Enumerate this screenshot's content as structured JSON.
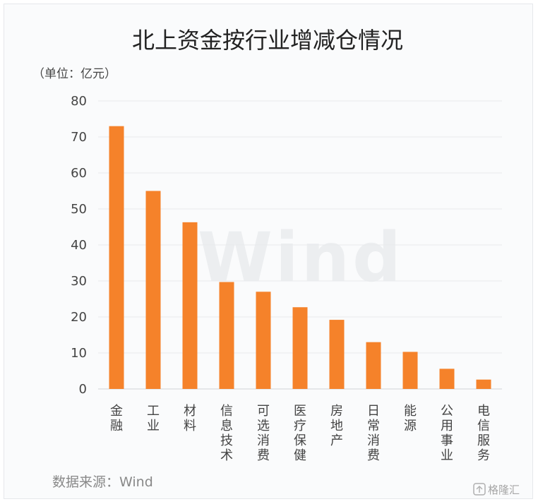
{
  "chart_data": {
    "type": "bar",
    "title": "北上资金按行业增减仓情况",
    "unit_label": "（单位：亿元）",
    "categories": [
      "金融",
      "工业",
      "材料",
      "信息技术",
      "可选消费",
      "医疗保健",
      "房地产",
      "日常消费",
      "能源",
      "公用事业",
      "电信服务"
    ],
    "values": [
      73,
      55,
      46.3,
      29.7,
      27,
      22.7,
      19.2,
      13,
      10.3,
      5.6,
      2.6
    ],
    "ylim": [
      0,
      80
    ],
    "yticks": [
      0,
      10,
      20,
      30,
      40,
      50,
      60,
      70,
      80
    ],
    "bar_color": "#f5822a",
    "grid": true,
    "legend": "none"
  },
  "source": "数据来源：Wind",
  "watermark": "Wind",
  "logo": {
    "text": "格隆汇"
  }
}
